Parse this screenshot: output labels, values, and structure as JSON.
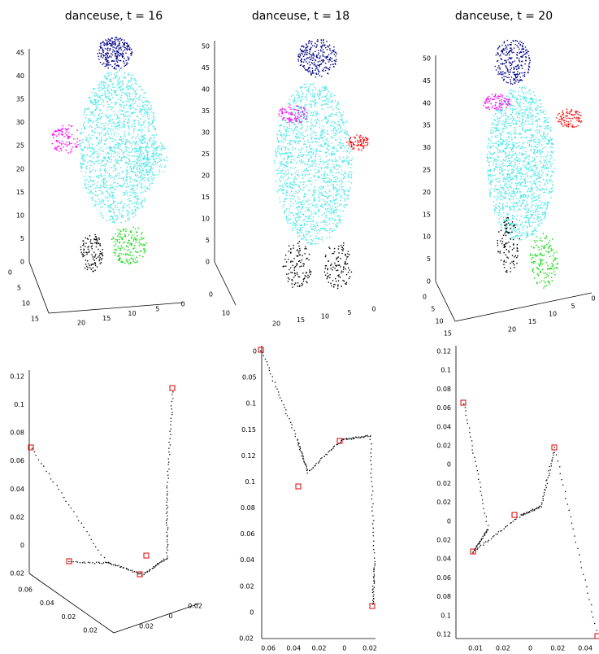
{
  "panels": [
    {
      "title": "danceuse, t = 16",
      "vertical_ticks": [
        45,
        40,
        35,
        30,
        25,
        20,
        15,
        10,
        5,
        0
      ],
      "depth_ticks": [
        0,
        5,
        10,
        15
      ],
      "horizontal_ticks": [
        20,
        15,
        10,
        5,
        0
      ]
    },
    {
      "title": "danceuse, t = 18",
      "vertical_ticks": [
        50,
        45,
        40,
        35,
        30,
        25,
        20,
        15,
        10,
        5,
        0
      ],
      "depth_ticks": [
        0,
        10
      ],
      "horizontal_ticks": [
        20,
        15,
        10,
        5,
        0
      ]
    },
    {
      "title": "danceuse, t = 20",
      "vertical_ticks": [
        50,
        45,
        40,
        35,
        30,
        25,
        20,
        15,
        10,
        5,
        0
      ],
      "depth_ticks": [
        0,
        5,
        10,
        15
      ],
      "horizontal_ticks": [
        20,
        15,
        10,
        5,
        0
      ]
    },
    {
      "vertical_ticks": [
        0.12,
        0.1,
        0.08,
        0.06,
        0.04,
        0.02,
        0,
        0.02
      ],
      "depth_ticks": [
        0.06,
        0.04,
        0.02,
        0.02
      ],
      "horizontal_ticks": [
        0.02,
        0,
        0.02
      ]
    },
    {
      "vertical_ticks": [
        0,
        0.05,
        0.1,
        0.15,
        0.12,
        0.1,
        0.08,
        0.06,
        0.04,
        0.02,
        0,
        0.02
      ],
      "horizontal_ticks": [
        0.06,
        0.04,
        0.02,
        0,
        0.02
      ]
    },
    {
      "vertical_ticks": [
        0.12,
        0.1,
        0.08,
        0.06,
        0.04,
        0.02,
        0,
        0.02,
        0.02,
        0,
        0.02,
        0.04,
        0.06,
        0.08,
        0.1,
        0.12
      ],
      "horizontal_ticks": [
        0.01,
        0.02,
        0,
        0.02,
        0.04
      ]
    }
  ]
}
